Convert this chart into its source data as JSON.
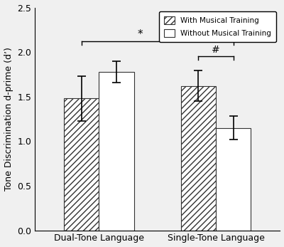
{
  "groups": [
    "Dual-Tone Language",
    "Single-Tone Language"
  ],
  "with_music": [
    1.48,
    1.62
  ],
  "without_music": [
    1.78,
    1.15
  ],
  "with_music_err": [
    0.25,
    0.17
  ],
  "without_music_err": [
    0.12,
    0.13
  ],
  "ylabel": "Tone Discrimination d-prime (d’)",
  "ylim": [
    0,
    2.5
  ],
  "yticks": [
    0.0,
    0.5,
    1.0,
    1.5,
    2.0,
    2.5
  ],
  "legend_with": "With Musical Training",
  "legend_without": "Without Musical Training",
  "bar_width": 0.3,
  "group_centers": [
    0.55,
    1.55
  ],
  "hatch_pattern": "////",
  "bar_edge_color": "#333333",
  "bar_fill_color": "white",
  "background_color": "#f0f0f0"
}
